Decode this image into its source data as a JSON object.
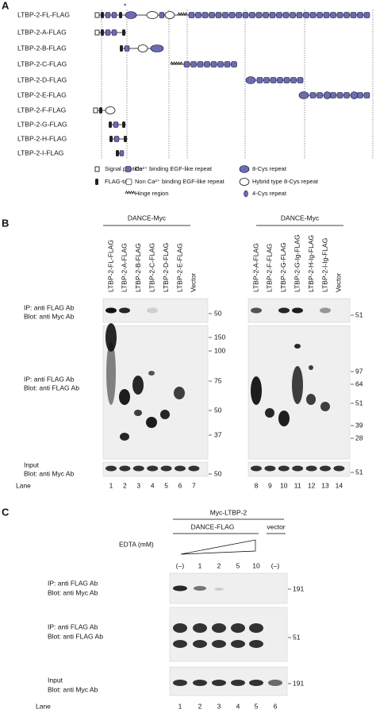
{
  "panel_a": {
    "label": "A",
    "asterisk": "*",
    "constructs": [
      "LTBP-2-FL-FLAG",
      "LTBP-2-A-FLAG",
      "LTBP-2-B-FLAG",
      "LTBP-2-C-FLAG",
      "LTBP-2-D-FLAG",
      "LTBP-2-E-FLAG",
      "LTBP-2-F-FLAG",
      "LTBP-2-G-FLAG",
      "LTBP-2-H-FLAG",
      "LTBP-2-I-FLAG"
    ],
    "legend": [
      "Signal peptide",
      "FLAG-tag",
      "Ca²⁺ binding EGF-like repeat",
      "Non Ca²⁺ binding EGF-like repeat",
      "Hinge region",
      "8-Cys repeat",
      "Hybrid type 8-Cys repeat",
      "4-Cys repeat"
    ]
  },
  "panel_b": {
    "label": "B",
    "rows": [
      [
        "IP: anti FLAG Ab",
        "Blot: anti Myc Ab"
      ],
      [
        "IP: anti FLAG Ab",
        "Blot: anti FLAG Ab"
      ],
      [
        "Input",
        "Blot: anti Myc Ab"
      ]
    ],
    "lane_title": "Lane",
    "groups": [
      {
        "title": "DANCE-Myc",
        "lanes": [
          "LTBP-2-FL-FLAG",
          "LTBP-2-A-FLAG",
          "LTBP-2-B-FLAG",
          "LTBP-2-C-FLAG",
          "LTBP-2-D-FLAG",
          "LTBP-2-E-FLAG",
          "Vector"
        ],
        "lane_numbers": [
          1,
          2,
          3,
          4,
          5,
          6,
          7
        ],
        "markers": [
          [
            50
          ],
          [
            150,
            100,
            75,
            50,
            37
          ],
          [
            50
          ]
        ]
      },
      {
        "title": "DANCE-Myc",
        "lanes": [
          "LTBP-2-A-FLAG",
          "LTBP-2-F-FLAG",
          "LTBP-2-G-FLAG",
          "LTBP-2-G-Ig-FLAG",
          "LTBP-2-H-Ig-FLAG",
          "LTBP-2-I-Ig-FLAG",
          "Vector"
        ],
        "lane_numbers": [
          8,
          9,
          10,
          11,
          12,
          13,
          14
        ],
        "markers": [
          [
            51
          ],
          [
            97,
            64,
            51,
            39,
            28
          ],
          [
            51
          ]
        ]
      }
    ]
  },
  "panel_c": {
    "label": "C",
    "top_label": "Myc-LTBP-2",
    "group_label": "DANCE-FLAG",
    "vector_label": "vector",
    "edta_label": "EDTA (mM)",
    "edta": [
      "(–)",
      "1",
      "2",
      "5",
      "10",
      "(–)"
    ],
    "rows": [
      [
        "IP: anti FLAG Ab",
        "Blot: anti Myc Ab"
      ],
      [
        "IP: anti FLAG Ab",
        "Blot: anti FLAG Ab"
      ],
      [
        "Input",
        "Blot: anti Myc Ab"
      ]
    ],
    "markers": [
      191,
      51,
      191
    ],
    "lane_title": "Lane",
    "lane_numbers": [
      1,
      2,
      3,
      4,
      5,
      6
    ]
  }
}
